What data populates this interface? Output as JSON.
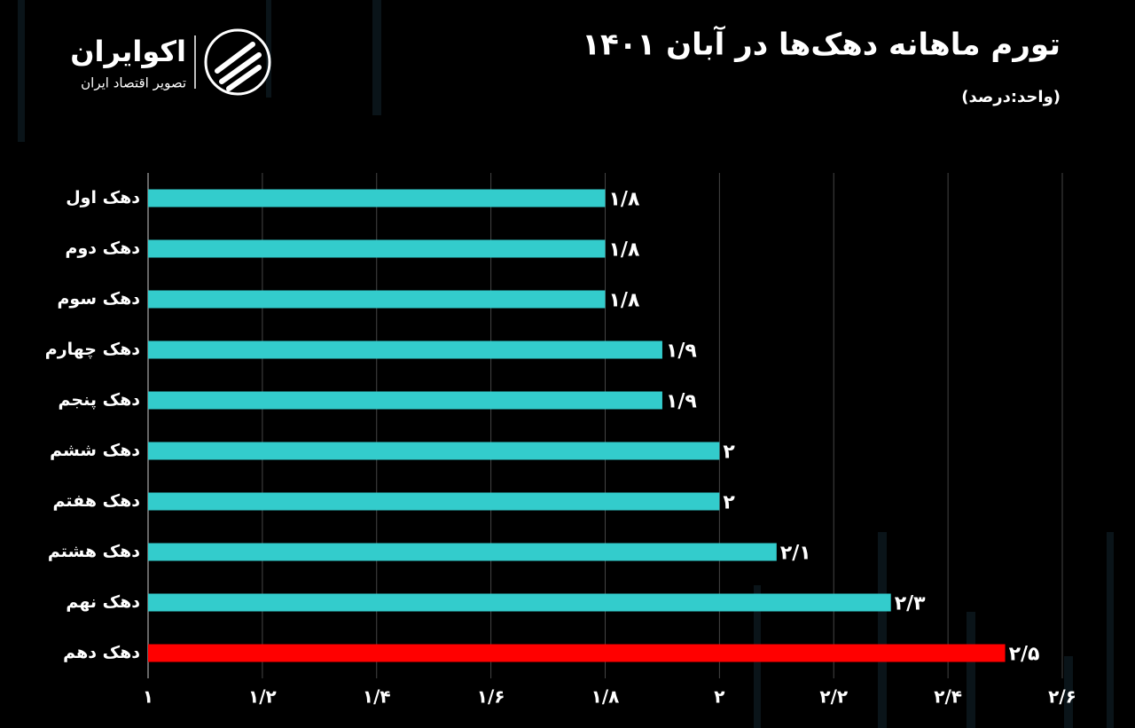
{
  "brand": {
    "name": "اکوایران",
    "tagline": "تصویر اقتصاد ایران"
  },
  "chart_data": {
    "type": "hbar",
    "title": "تورم ماهانه دهک‌ها در آبان ۱۴۰۱",
    "subtitle": "(واحد:درصد)",
    "categories": [
      "دهک اول",
      "دهک دوم",
      "دهک سوم",
      "دهک چهارم",
      "دهک پنجم",
      "دهک ششم",
      "دهک هفتم",
      "دهک هشتم",
      "دهک نهم",
      "دهک دهم"
    ],
    "values": [
      1.8,
      1.8,
      1.8,
      1.9,
      1.9,
      2,
      2,
      2.1,
      2.3,
      2.5
    ],
    "value_labels": [
      "۱/۸",
      "۱/۸",
      "۱/۸",
      "۱/۹",
      "۱/۹",
      "۲",
      "۲",
      "۲/۱",
      "۲/۳",
      "۲/۵"
    ],
    "colors": [
      "#33cccc",
      "#33cccc",
      "#33cccc",
      "#33cccc",
      "#33cccc",
      "#33cccc",
      "#33cccc",
      "#33cccc",
      "#33cccc",
      "#ff0000"
    ],
    "xlim": [
      1,
      2.6
    ],
    "xticks": [
      {
        "value": 1,
        "label": "۱"
      },
      {
        "value": 1.2,
        "label": "۱/۲"
      },
      {
        "value": 1.4,
        "label": "۱/۴"
      },
      {
        "value": 1.6,
        "label": "۱/۶"
      },
      {
        "value": 1.8,
        "label": "۱/۸"
      },
      {
        "value": 2,
        "label": "۲"
      },
      {
        "value": 2.2,
        "label": "۲/۲"
      },
      {
        "value": 2.4,
        "label": "۲/۴"
      },
      {
        "value": 2.6,
        "label": "۲/۶"
      }
    ],
    "grid": true
  }
}
